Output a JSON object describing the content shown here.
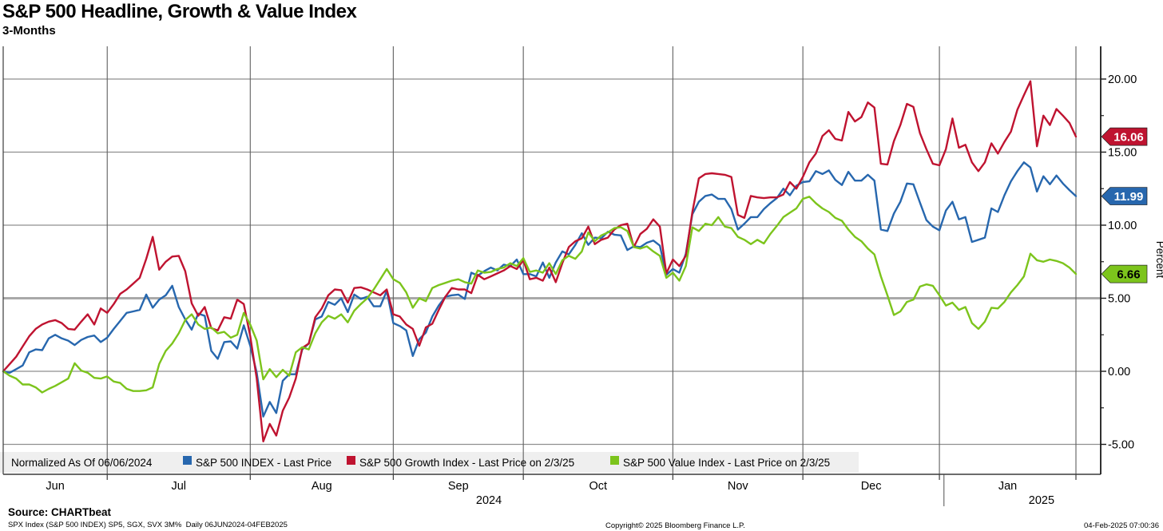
{
  "header": {
    "title": "S&P 500 Headline, Growth & Value Index",
    "subtitle": "3-Months"
  },
  "footer": {
    "source": "Source: CHARTbeat",
    "ticker_line": "SPX Index (S&P 500 INDEX) SP5, SGX, SVX 3M%  Daily 06JUN2024-04FEB2025",
    "copyright": "Copyright© 2025 Bloomberg Finance L.P.",
    "datetime": "04-Feb-2025 07:00:36"
  },
  "chart_data": {
    "type": "line",
    "title": "S&P 500 Headline, Growth & Value Index",
    "subtitle": "3-Months",
    "normalized_as_of": "Normalized As Of 06/06/2024",
    "x_unit": "trading-day index from 06/06/2024",
    "total_days": 165,
    "month_boundary_days": [
      16,
      38,
      60,
      80,
      103,
      123,
      144,
      165
    ],
    "month_labels": [
      {
        "text": "Jun",
        "mid_day": 8
      },
      {
        "text": "Jul",
        "mid_day": 27
      },
      {
        "text": "Aug",
        "mid_day": 49
      },
      {
        "text": "Sep",
        "mid_day": 70
      },
      {
        "text": "Oct",
        "mid_day": 91.5
      },
      {
        "text": "Nov",
        "mid_day": 113
      },
      {
        "text": "Dec",
        "mid_day": 133.5
      },
      {
        "text": "Jan",
        "mid_day": 154.5
      }
    ],
    "year_labels": [
      {
        "text": "2024",
        "day": 72
      },
      {
        "text": "2025",
        "day": 157
      }
    ],
    "year_separator_day": 144.7,
    "ylabel": "Percent",
    "ylim": [
      -7.1,
      22.3
    ],
    "y_major_ticks": [
      20,
      15,
      10,
      5,
      0,
      -5
    ],
    "y_minor_ticks": [
      17.5,
      12.5,
      7.5,
      2.5,
      -2.5
    ],
    "grid": true,
    "legend_position": "bottom-strip",
    "colors": {
      "grid_h": "#8f8f8f",
      "grid_h_thick": "#a9a9a9",
      "grid_v": "#5f5f5f",
      "frame": "#3c3c3c",
      "axis": "#1a1a1a",
      "legend_bg": "#efefef",
      "text": "#000000"
    },
    "series": [
      {
        "name": "S&P 500 INDEX - Last Price",
        "color": "#2767ae",
        "last_price_label": "11.99",
        "badge_text_color": "#ffffff",
        "values": [
          0,
          -0.1,
          0.15,
          0.4,
          1.3,
          1.5,
          1.45,
          2.25,
          2.5,
          2.25,
          2.1,
          1.8,
          2.15,
          2.35,
          2.45,
          2.0,
          2.3,
          2.9,
          3.45,
          4.0,
          4.1,
          4.2,
          5.25,
          4.35,
          4.9,
          5.2,
          5.85,
          4.4,
          3.55,
          2.85,
          3.95,
          3.8,
          1.4,
          0.85,
          2.0,
          2.05,
          1.55,
          3.15,
          1.75,
          -0.1,
          -3.1,
          -2.1,
          -2.85,
          -0.65,
          -0.2,
          -0.2,
          1.5,
          1.9,
          3.55,
          3.75,
          4.75,
          4.55,
          5.0,
          4.05,
          5.25,
          4.95,
          5.1,
          4.45,
          4.45,
          5.5,
          3.3,
          3.1,
          2.8,
          1.05,
          2.2,
          2.65,
          3.75,
          4.5,
          5.1,
          5.2,
          5.25,
          4.95,
          6.75,
          6.55,
          6.85,
          7.1,
          6.9,
          7.3,
          7.2,
          7.65,
          6.65,
          6.65,
          6.5,
          7.45,
          6.4,
          7.45,
          8.2,
          8.0,
          8.65,
          9.45,
          8.65,
          9.15,
          9.1,
          9.55,
          9.35,
          9.3,
          8.3,
          8.55,
          8.5,
          8.8,
          8.95,
          8.6,
          6.6,
          7.0,
          6.75,
          8.05,
          10.75,
          11.6,
          12.0,
          12.1,
          11.8,
          11.8,
          11.1,
          9.7,
          10.1,
          10.55,
          10.55,
          11.1,
          11.5,
          11.85,
          12.5,
          12.05,
          12.7,
          12.95,
          13.0,
          13.7,
          13.5,
          13.75,
          13.1,
          12.75,
          13.65,
          13.05,
          13.05,
          13.45,
          13.05,
          9.7,
          9.6,
          10.8,
          11.6,
          12.85,
          12.8,
          11.55,
          10.35,
          9.9,
          9.65,
          11.0,
          11.6,
          10.4,
          10.55,
          8.85,
          9.0,
          9.15,
          11.15,
          10.9,
          12.05,
          13.0,
          13.7,
          14.3,
          13.95,
          12.3,
          13.35,
          12.8,
          13.4,
          12.85,
          12.4,
          11.99
        ]
      },
      {
        "name": "S&P 500 Growth Index - Last Price on 2/3/25",
        "color": "#bf1330",
        "last_price_label": "16.06",
        "badge_text_color": "#ffffff",
        "values": [
          0,
          0.5,
          1.0,
          1.7,
          2.4,
          2.9,
          3.2,
          3.4,
          3.5,
          3.3,
          2.9,
          2.85,
          3.4,
          3.9,
          3.2,
          4.3,
          4.0,
          4.6,
          5.3,
          5.6,
          6.0,
          6.4,
          7.7,
          9.2,
          6.95,
          7.5,
          7.85,
          7.9,
          6.85,
          4.65,
          3.8,
          4.4,
          2.95,
          2.8,
          3.7,
          3.6,
          4.9,
          4.6,
          2.4,
          -0.5,
          -4.8,
          -3.6,
          -4.4,
          -2.7,
          -1.8,
          -0.5,
          1.6,
          1.9,
          3.7,
          4.3,
          5.2,
          5.6,
          5.55,
          4.7,
          5.7,
          5.75,
          5.6,
          5.4,
          5.2,
          5.6,
          3.9,
          3.75,
          3.2,
          2.9,
          1.75,
          3.0,
          3.25,
          4.2,
          5.1,
          5.7,
          5.6,
          5.6,
          5.35,
          6.6,
          6.3,
          6.5,
          6.7,
          6.9,
          7.2,
          7.0,
          7.6,
          6.3,
          6.4,
          6.2,
          7.1,
          6.1,
          7.4,
          8.5,
          8.9,
          9.1,
          9.9,
          8.7,
          9.0,
          9.15,
          9.7,
          10.0,
          10.1,
          8.5,
          9.4,
          9.75,
          10.4,
          9.9,
          6.7,
          7.65,
          7.2,
          7.9,
          10.9,
          13.2,
          13.5,
          13.55,
          13.5,
          13.45,
          13.3,
          10.7,
          10.5,
          12.0,
          11.9,
          11.85,
          11.9,
          11.9,
          12.1,
          12.95,
          12.5,
          13.3,
          14.3,
          14.9,
          16.1,
          16.5,
          15.9,
          15.8,
          17.75,
          17.1,
          17.4,
          18.4,
          18.05,
          14.2,
          14.15,
          15.75,
          16.85,
          18.3,
          18.1,
          16.3,
          15.2,
          14.2,
          14.1,
          15.2,
          17.3,
          15.3,
          15.5,
          14.3,
          13.7,
          14.3,
          15.6,
          14.9,
          15.7,
          16.4,
          17.9,
          18.9,
          19.85,
          15.4,
          17.5,
          16.85,
          17.95,
          17.5,
          17.0,
          16.06
        ]
      },
      {
        "name": "S&P 500 Value Index - Last Price on 2/3/25",
        "color": "#7cc41c",
        "last_price_label": "6.66",
        "badge_text_color": "#000000",
        "values": [
          0,
          -0.3,
          -0.5,
          -0.9,
          -0.9,
          -1.1,
          -1.45,
          -1.2,
          -1.0,
          -0.75,
          -0.5,
          0.55,
          0.05,
          -0.1,
          -0.45,
          -0.5,
          -0.35,
          -0.7,
          -0.8,
          -1.2,
          -1.35,
          -1.35,
          -1.3,
          -1.1,
          0.5,
          1.4,
          1.9,
          2.6,
          3.5,
          3.9,
          3.2,
          2.9,
          3.0,
          2.6,
          2.7,
          2.3,
          2.5,
          4.0,
          3.2,
          2.1,
          -0.55,
          0.15,
          -0.4,
          0.1,
          -0.3,
          1.3,
          1.65,
          1.5,
          2.6,
          3.35,
          3.8,
          3.6,
          3.9,
          3.35,
          4.15,
          4.6,
          5.0,
          5.6,
          6.3,
          7.0,
          6.3,
          6.05,
          5.4,
          4.35,
          5.0,
          4.8,
          5.7,
          5.9,
          6.05,
          6.2,
          6.3,
          6.1,
          6.0,
          6.9,
          6.75,
          6.8,
          7.0,
          7.1,
          7.4,
          7.2,
          7.75,
          6.8,
          6.9,
          6.75,
          7.4,
          6.65,
          7.6,
          7.9,
          7.7,
          8.2,
          9.5,
          8.9,
          9.3,
          9.5,
          9.8,
          9.86,
          9.6,
          8.5,
          8.4,
          8.55,
          8.2,
          7.9,
          6.4,
          6.75,
          6.2,
          7.2,
          9.85,
          9.6,
          10.1,
          10.0,
          10.55,
          9.9,
          9.8,
          9.2,
          9.0,
          8.7,
          9.0,
          8.75,
          9.4,
          9.95,
          10.55,
          10.85,
          11.15,
          11.8,
          11.95,
          11.5,
          11.15,
          10.9,
          10.5,
          10.3,
          9.7,
          9.2,
          8.9,
          8.4,
          8.0,
          6.5,
          5.2,
          3.85,
          4.1,
          4.75,
          4.9,
          5.8,
          5.95,
          5.85,
          5.2,
          4.5,
          4.7,
          4.2,
          4.4,
          3.3,
          2.9,
          3.4,
          4.35,
          4.3,
          4.75,
          5.4,
          5.9,
          6.5,
          8.05,
          7.6,
          7.5,
          7.65,
          7.55,
          7.4,
          7.1,
          6.66
        ]
      }
    ]
  }
}
